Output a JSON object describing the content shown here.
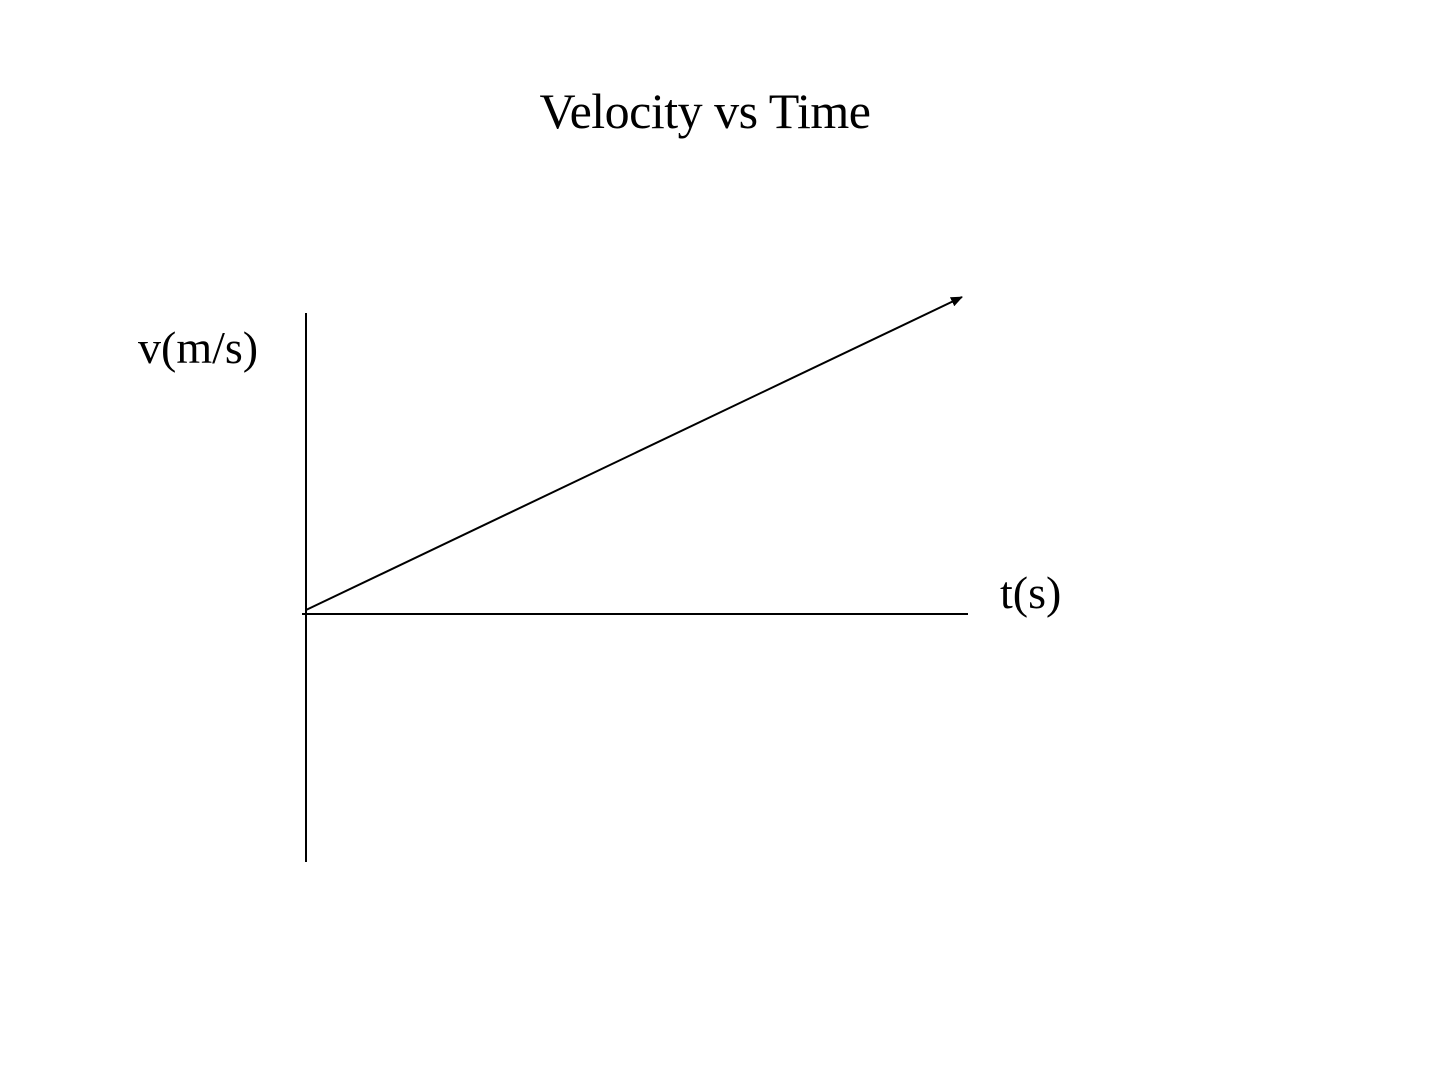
{
  "chart_data": {
    "type": "line",
    "title": "Velocity vs Time",
    "xlabel": "t(s)",
    "ylabel": "v(m/s)",
    "grid": false,
    "legend": "none",
    "axes_style": "origin-centered cross, no ticks, no tick labels",
    "series": [
      {
        "style": "straight line with arrowhead",
        "color": "#000000",
        "points": [
          [
            0,
            0
          ],
          [
            1,
            1
          ]
        ]
      }
    ]
  }
}
